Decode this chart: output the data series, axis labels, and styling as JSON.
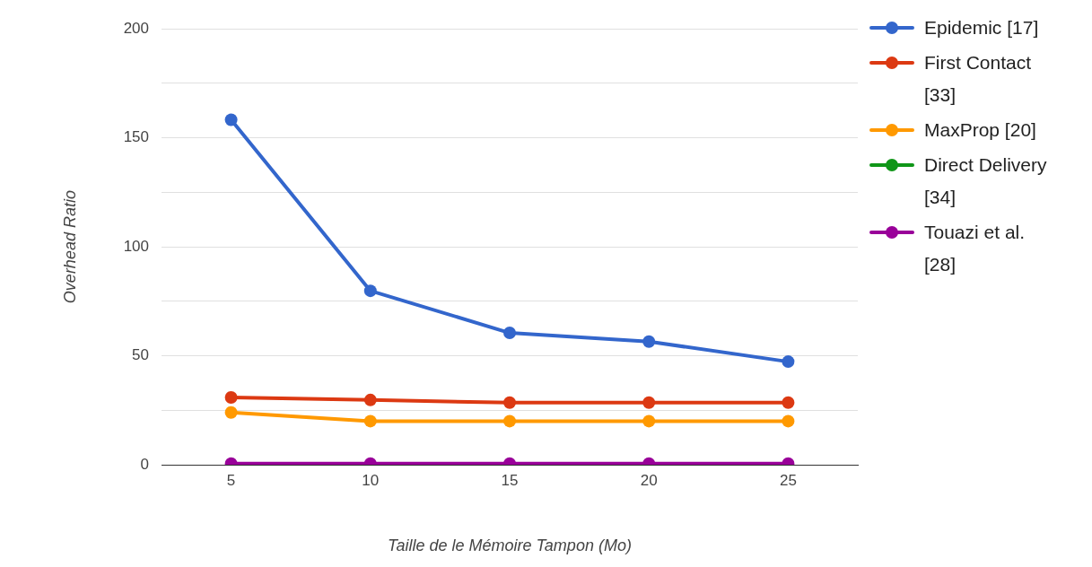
{
  "chart_data": {
    "type": "line",
    "xlabel": "Taille de le Mémoire Tampon (Mo)",
    "ylabel": "Overhead Ratio",
    "x": [
      5,
      10,
      15,
      20,
      25
    ],
    "xlim": [
      2.5,
      27.5
    ],
    "xticks": [
      5,
      10,
      15,
      20,
      25
    ],
    "ylim": [
      0,
      200
    ],
    "yticks": [
      0,
      {
        "value": 25,
        "label": null
      },
      50,
      {
        "value": 75,
        "label": null
      },
      100,
      {
        "value": 125,
        "label": null
      },
      150,
      {
        "value": 175,
        "label": null
      },
      200
    ],
    "grid": "y",
    "legend": "right",
    "marker": "circle",
    "line_style": "solid",
    "series": [
      {
        "name": "Epidemic [17]",
        "color": "#3366cc",
        "values": [
          158.3,
          79.8,
          60.5,
          56.5,
          47.3
        ]
      },
      {
        "name": "First Contact [33]",
        "color": "#dc3912",
        "values": [
          30.9,
          29.7,
          28.5,
          28.5,
          28.5
        ]
      },
      {
        "name": "MaxProp [20]",
        "color": "#ff9900",
        "values": [
          24,
          20,
          20,
          20,
          20
        ]
      },
      {
        "name": "Direct Delivery [34]",
        "color": "#109618",
        "values": [
          null,
          null,
          null,
          null,
          null
        ]
      },
      {
        "name": "Touazi et al. [28]",
        "color": "#990099",
        "values": [
          0.5,
          0.5,
          0.5,
          0.5,
          0.5
        ]
      }
    ]
  }
}
